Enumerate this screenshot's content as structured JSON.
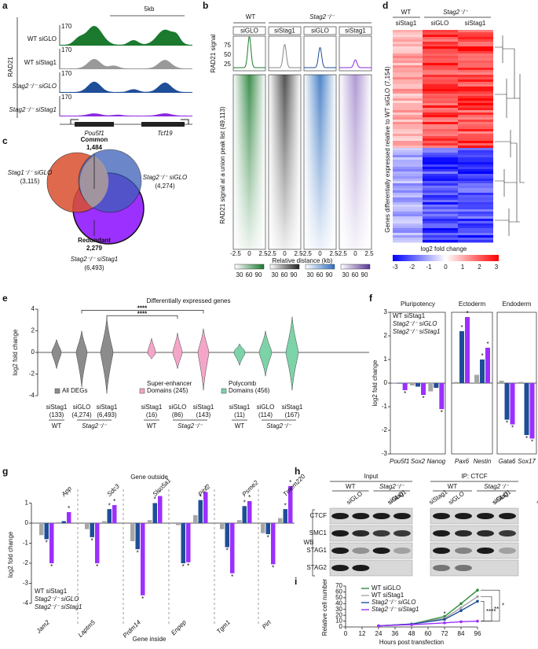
{
  "panel_labels": [
    "a",
    "b",
    "c",
    "d",
    "e",
    "f",
    "g",
    "h",
    "i"
  ],
  "a": {
    "group": "RAD21",
    "scale": "5kb",
    "tracks": [
      {
        "name": "WT siGLO",
        "max": 170
      },
      {
        "name": "WT siStag1",
        "max": 170
      },
      {
        "name": "Stag2⁻/⁻ siGLO",
        "max": 170
      },
      {
        "name": "Stag2⁻/⁻ siStag1",
        "max": 170
      }
    ],
    "genes": [
      "Pou5f1",
      "Tcf19"
    ]
  },
  "b": {
    "groups": [
      "WT",
      "Stag2⁻/⁻"
    ],
    "columns": [
      "siGLO",
      "siStag1",
      "siGLO",
      "siStag1"
    ],
    "profile_label": "RAD21 signal",
    "profile_ticks": [
      25,
      50,
      75
    ],
    "heatmap_label": "RAD21 signal at a union peak list (49,113)",
    "x_ticks": [
      -2.5,
      0,
      2.5
    ],
    "x_label": "Relative distance (kb)",
    "colorbar_ticks": [
      30,
      60,
      90
    ]
  },
  "c": {
    "common": "Common",
    "common_n": "1,484",
    "set1": "Stag1⁻/⁻ siGLO",
    "set1_n": "(3,115)",
    "set2": "Stag2⁻/⁻ siGLO",
    "set2_n": "(4,274)",
    "redundant": "Redundant",
    "redundant_n": "2,279",
    "set3": "Stag2⁻/⁻ siStag1",
    "set3_n": "(6,493)"
  },
  "d": {
    "groups": [
      "WT",
      "Stag2⁻/⁻"
    ],
    "columns": [
      "siStag1",
      "siGLO",
      "siStag1"
    ],
    "y_label": "Genes differentially expressed relative to WT siGLO (7,154)",
    "colorbar_ticks": [
      -3,
      -2,
      -1,
      0,
      1,
      2,
      3
    ],
    "colorbar_label": "log2 fold change"
  },
  "e": {
    "title": "Differentially expressed genes",
    "y_label": "log2 fold change",
    "ylim": [
      -4,
      4
    ],
    "yticks": [
      -4,
      -2,
      0,
      2,
      4
    ],
    "significance": [
      "****",
      "****"
    ],
    "legend": [
      [
        "All DEGs"
      ],
      [
        "Super-enhancer",
        "Domains (245)"
      ],
      [
        "Polycomb",
        "Domains (456)"
      ]
    ],
    "violins": [
      {
        "label": "siStag1",
        "count": "(133)"
      },
      {
        "label": "siGLO",
        "count": "(4,274)"
      },
      {
        "label": "siStag1",
        "count": "(6,493)"
      },
      {
        "label": "siStag1",
        "count": "(16)"
      },
      {
        "label": "siGLO",
        "count": "(86)"
      },
      {
        "label": "siStag1",
        "count": "(143)"
      },
      {
        "label": "siStag1",
        "count": "(11)"
      },
      {
        "label": "siGLO",
        "count": "(114)"
      },
      {
        "label": "siStag1",
        "count": "(167)"
      }
    ],
    "genotypes": [
      "WT",
      "Stag2⁻/⁻",
      "WT",
      "Stag2⁻/⁻",
      "WT",
      "Stag2⁻/⁻"
    ]
  },
  "f": {
    "y_label": "log2 fold change",
    "ylim": [
      -3,
      3
    ],
    "yticks": [
      -3,
      -2,
      -1,
      0,
      1,
      2,
      3
    ],
    "series": [
      {
        "name": "WT siStag1",
        "color": "#a6a6a6"
      },
      {
        "name": "Stag2⁻/⁻ siGLO",
        "color": "#1f4e99"
      },
      {
        "name": "Stag2⁻/⁻ siStag1",
        "color": "#9b30ff"
      }
    ],
    "facets": [
      {
        "title": "Pluripotency",
        "categories": [
          "Pou5f1",
          "Sox2",
          "Nanog"
        ],
        "series": [
          {
            "values": [
              0.02,
              -0.1,
              -0.35
            ]
          },
          {
            "values": [
              -0.02,
              -0.15,
              -0.2
            ]
          },
          {
            "values": [
              -0.3,
              -0.5,
              -1.1
            ],
            "stars": [
              "*",
              "*",
              "*"
            ]
          }
        ]
      },
      {
        "title": "Ectoderm",
        "categories": [
          "Pax6",
          "Nestin"
        ],
        "series": [
          {
            "values": [
              0.05,
              0.35
            ]
          },
          {
            "values": [
              2.2,
              1.0
            ],
            "stars": [
              "*",
              "*"
            ]
          },
          {
            "values": [
              2.8,
              1.5
            ],
            "stars": [
              "*",
              "*"
            ]
          }
        ]
      },
      {
        "title": "Endoderm",
        "categories": [
          "Gata6",
          "Sox17"
        ],
        "series": [
          {
            "values": [
              0.1,
              0.05
            ]
          },
          {
            "values": [
              -1.55,
              -2.2
            ],
            "stars": [
              "*",
              "*"
            ]
          },
          {
            "values": [
              -1.75,
              -2.35
            ],
            "stars": [
              "*",
              "*"
            ]
          }
        ]
      }
    ]
  },
  "g": {
    "title_top": "Gene outside",
    "title_bottom": "Gene inside",
    "y_label": "log2 fold change",
    "ylim": [
      -4,
      1
    ],
    "yticks": [
      -4,
      -3,
      -2,
      -1,
      0,
      1
    ],
    "series": [
      {
        "name": "WT siStag1",
        "color": "#a6a6a6"
      },
      {
        "name": "Stag2⁻/⁻ siGLO",
        "color": "#1f4e99"
      },
      {
        "name": "Stag2⁻/⁻ siStag1",
        "color": "#9b30ff"
      }
    ],
    "pairs": [
      {
        "outside": "App",
        "inside": "Jam2",
        "outside_values": [
          0.05,
          0.1,
          0.55
        ],
        "inside_values": [
          -0.6,
          -0.8,
          -2.0
        ],
        "outside_stars": [
          null,
          null,
          "*"
        ],
        "inside_stars": [
          null,
          "*",
          "*"
        ]
      },
      {
        "outside": "Sdc3",
        "inside": "Laptm5",
        "outside_values": [
          0.1,
          0.7,
          0.9
        ],
        "inside_values": [
          -0.3,
          -0.7,
          -2.0
        ],
        "outside_stars": [
          null,
          "*",
          "*"
        ],
        "inside_stars": [
          null,
          "*",
          "*"
        ]
      },
      {
        "outside": "Slco5a1",
        "inside": "Prdm14",
        "outside_values": [
          0.15,
          1.0,
          1.35
        ],
        "inside_values": [
          -0.9,
          -1.3,
          -3.6
        ],
        "outside_stars": [
          null,
          "*",
          "*"
        ],
        "inside_stars": [
          null,
          "*",
          "*"
        ]
      },
      {
        "outside": "Pitx2",
        "inside": "Enpep",
        "outside_values": [
          0.4,
          1.15,
          1.55
        ],
        "inside_values": [
          -0.1,
          -2.0,
          -1.95
        ],
        "outside_stars": [
          null,
          "*",
          "*"
        ],
        "inside_stars": [
          null,
          "*",
          "*"
        ]
      },
      {
        "outside": "Psme2",
        "inside": "Tgm1",
        "outside_values": [
          0.15,
          0.85,
          1.1
        ],
        "inside_values": [
          -0.3,
          -1.2,
          -2.5
        ],
        "outside_stars": [
          null,
          "*",
          "*"
        ],
        "inside_stars": [
          null,
          "*",
          "*"
        ]
      },
      {
        "outside": "Tmem220",
        "inside": "Pirt",
        "outside_values": [
          0.25,
          0.7,
          1.85
        ],
        "inside_values": [
          -0.5,
          -0.55,
          -2.05
        ],
        "outside_stars": [
          null,
          "*",
          "*"
        ],
        "inside_stars": [
          null,
          "*",
          "*"
        ]
      }
    ]
  },
  "h": {
    "sections": [
      "Input",
      "IP: CTCF"
    ],
    "groups": [
      "WT",
      "Stag2⁻/⁻"
    ],
    "lanes": [
      "siGLO",
      "siStag1"
    ],
    "rows": [
      "CTCF",
      "SMC1",
      "STAG1",
      "STAG2"
    ],
    "method": "WB"
  },
  "i": {
    "type": "line",
    "x_label": "Hours post transfection",
    "y_label": "Relative cell number",
    "x": [
      24,
      48,
      72,
      84,
      96
    ],
    "xlim": [
      0,
      96
    ],
    "xticks": [
      0,
      12,
      24,
      36,
      48,
      60,
      72,
      84,
      96
    ],
    "ylim": [
      0,
      70
    ],
    "yticks": [
      0,
      10,
      20,
      30,
      40,
      50,
      60,
      70
    ],
    "series": [
      {
        "name": "WT siGLO",
        "color": "#2e8b3a",
        "values": [
          2,
          5,
          18,
          40,
          63
        ]
      },
      {
        "name": "WT siStag1",
        "color": "#a6a6a6",
        "values": [
          2,
          5,
          15,
          33,
          52
        ]
      },
      {
        "name": "Stag2⁻/⁻ siGLO",
        "color": "#1f4e99",
        "values": [
          2,
          5,
          13,
          28,
          44
        ]
      },
      {
        "name": "Stag2⁻/⁻ siStag1",
        "color": "#9b30ff",
        "values": [
          2,
          4,
          7,
          9,
          10
        ]
      }
    ],
    "significance": [
      "*",
      "****",
      "**",
      "*"
    ]
  }
}
